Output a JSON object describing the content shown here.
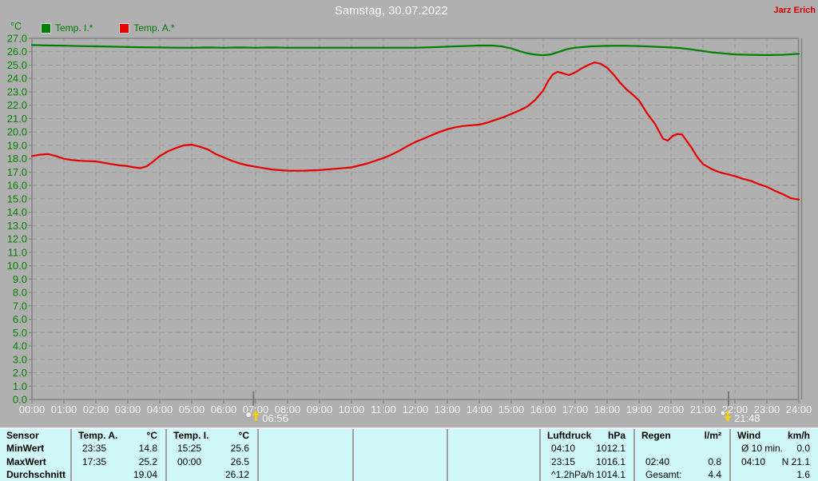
{
  "header": {
    "title": "Samstag, 30.07.2022",
    "owner": "Jarz Erich"
  },
  "colors": {
    "background": "#b0b0b0",
    "grid": "#9a9a9a",
    "axis": "#828282",
    "y_label_green": "#008000",
    "x_label_white": "#f8f8f8",
    "title_white": "#ffffff",
    "owner_red": "#d00000",
    "table_background": "#d0f8f8",
    "table_separator": "#a0a0a0",
    "marker_yellow": "#f0d400",
    "temp_inside_green": "#008000",
    "temp_outside_red": "#e60000"
  },
  "chart_data": {
    "type": "line",
    "title": "Samstag, 30.07.2022",
    "ylabel": "°C",
    "xlabel": "",
    "xlim": [
      0,
      24
    ],
    "ylim": [
      0,
      27
    ],
    "y_step": 1.0,
    "grid": true,
    "legend_position": "top-left",
    "x_tick_labels": [
      "00:00",
      "01:00",
      "02:00",
      "03:00",
      "04:00",
      "05:00",
      "06:00",
      "07:00",
      "08:00",
      "09:00",
      "10:00",
      "11:00",
      "12:00",
      "13:00",
      "14:00",
      "15:00",
      "16:00",
      "17:00",
      "18:00",
      "19:00",
      "20:00",
      "21:00",
      "22:00",
      "23:00",
      "24:00"
    ],
    "series": [
      {
        "name": "Temp. I.*",
        "color": "#008000",
        "points": [
          [
            0,
            26.5
          ],
          [
            0.5,
            26.47
          ],
          [
            1,
            26.45
          ],
          [
            1.5,
            26.42
          ],
          [
            2,
            26.4
          ],
          [
            2.5,
            26.38
          ],
          [
            3,
            26.35
          ],
          [
            3.5,
            26.33
          ],
          [
            4,
            26.32
          ],
          [
            4.5,
            26.3
          ],
          [
            5,
            26.3
          ],
          [
            5.5,
            26.32
          ],
          [
            6,
            26.3
          ],
          [
            6.5,
            26.32
          ],
          [
            7,
            26.3
          ],
          [
            7.5,
            26.32
          ],
          [
            8,
            26.3
          ],
          [
            8.5,
            26.3
          ],
          [
            9,
            26.3
          ],
          [
            9.5,
            26.3
          ],
          [
            10,
            26.3
          ],
          [
            10.5,
            26.3
          ],
          [
            11,
            26.3
          ],
          [
            11.5,
            26.3
          ],
          [
            12,
            26.3
          ],
          [
            12.5,
            26.33
          ],
          [
            13,
            26.38
          ],
          [
            13.5,
            26.42
          ],
          [
            14,
            26.46
          ],
          [
            14.4,
            26.46
          ],
          [
            14.7,
            26.4
          ],
          [
            15,
            26.25
          ],
          [
            15.25,
            26.05
          ],
          [
            15.5,
            25.88
          ],
          [
            15.75,
            25.78
          ],
          [
            16,
            25.74
          ],
          [
            16.25,
            25.8
          ],
          [
            16.5,
            26.0
          ],
          [
            16.75,
            26.2
          ],
          [
            17,
            26.3
          ],
          [
            17.5,
            26.4
          ],
          [
            18,
            26.44
          ],
          [
            18.5,
            26.45
          ],
          [
            19,
            26.42
          ],
          [
            19.5,
            26.37
          ],
          [
            20,
            26.32
          ],
          [
            20.3,
            26.27
          ],
          [
            20.6,
            26.18
          ],
          [
            21,
            26.05
          ],
          [
            21.3,
            25.95
          ],
          [
            21.6,
            25.88
          ],
          [
            22,
            25.8
          ],
          [
            22.5,
            25.77
          ],
          [
            23,
            25.75
          ],
          [
            23.5,
            25.77
          ],
          [
            24,
            25.85
          ]
        ]
      },
      {
        "name": "Temp. A.*",
        "color": "#e60000",
        "points": [
          [
            0,
            18.2
          ],
          [
            0.25,
            18.3
          ],
          [
            0.5,
            18.35
          ],
          [
            0.75,
            18.2
          ],
          [
            1,
            18.0
          ],
          [
            1.25,
            17.9
          ],
          [
            1.5,
            17.85
          ],
          [
            1.75,
            17.82
          ],
          [
            2,
            17.8
          ],
          [
            2.25,
            17.7
          ],
          [
            2.5,
            17.6
          ],
          [
            2.75,
            17.5
          ],
          [
            3,
            17.45
          ],
          [
            3.2,
            17.35
          ],
          [
            3.4,
            17.3
          ],
          [
            3.6,
            17.45
          ],
          [
            3.8,
            17.8
          ],
          [
            4,
            18.2
          ],
          [
            4.25,
            18.55
          ],
          [
            4.5,
            18.8
          ],
          [
            4.75,
            19.0
          ],
          [
            5,
            19.05
          ],
          [
            5.25,
            18.9
          ],
          [
            5.5,
            18.7
          ],
          [
            5.75,
            18.35
          ],
          [
            6,
            18.1
          ],
          [
            6.25,
            17.85
          ],
          [
            6.5,
            17.65
          ],
          [
            6.75,
            17.5
          ],
          [
            7,
            17.4
          ],
          [
            7.25,
            17.3
          ],
          [
            7.5,
            17.2
          ],
          [
            7.75,
            17.15
          ],
          [
            8,
            17.1
          ],
          [
            8.5,
            17.1
          ],
          [
            9,
            17.15
          ],
          [
            9.5,
            17.25
          ],
          [
            10,
            17.35
          ],
          [
            10.25,
            17.5
          ],
          [
            10.5,
            17.65
          ],
          [
            10.75,
            17.85
          ],
          [
            11,
            18.05
          ],
          [
            11.25,
            18.3
          ],
          [
            11.5,
            18.6
          ],
          [
            11.75,
            18.95
          ],
          [
            12,
            19.25
          ],
          [
            12.25,
            19.5
          ],
          [
            12.5,
            19.75
          ],
          [
            12.75,
            20.0
          ],
          [
            13,
            20.2
          ],
          [
            13.25,
            20.35
          ],
          [
            13.5,
            20.45
          ],
          [
            13.75,
            20.5
          ],
          [
            14,
            20.55
          ],
          [
            14.25,
            20.7
          ],
          [
            14.5,
            20.9
          ],
          [
            14.75,
            21.1
          ],
          [
            15,
            21.35
          ],
          [
            15.25,
            21.6
          ],
          [
            15.5,
            21.9
          ],
          [
            15.75,
            22.4
          ],
          [
            16,
            23.1
          ],
          [
            16.15,
            23.8
          ],
          [
            16.3,
            24.3
          ],
          [
            16.45,
            24.5
          ],
          [
            16.6,
            24.4
          ],
          [
            16.8,
            24.25
          ],
          [
            17,
            24.45
          ],
          [
            17.2,
            24.75
          ],
          [
            17.4,
            25.0
          ],
          [
            17.6,
            25.2
          ],
          [
            17.8,
            25.1
          ],
          [
            18,
            24.8
          ],
          [
            18.2,
            24.3
          ],
          [
            18.4,
            23.7
          ],
          [
            18.6,
            23.2
          ],
          [
            18.8,
            22.8
          ],
          [
            19,
            22.35
          ],
          [
            19.25,
            21.4
          ],
          [
            19.5,
            20.6
          ],
          [
            19.75,
            19.5
          ],
          [
            19.9,
            19.35
          ],
          [
            20.05,
            19.7
          ],
          [
            20.2,
            19.85
          ],
          [
            20.35,
            19.8
          ],
          [
            20.5,
            19.3
          ],
          [
            20.65,
            18.8
          ],
          [
            20.8,
            18.2
          ],
          [
            21,
            17.6
          ],
          [
            21.25,
            17.25
          ],
          [
            21.5,
            17.0
          ],
          [
            21.75,
            16.85
          ],
          [
            22,
            16.7
          ],
          [
            22.25,
            16.5
          ],
          [
            22.5,
            16.35
          ],
          [
            22.75,
            16.1
          ],
          [
            23,
            15.9
          ],
          [
            23.25,
            15.6
          ],
          [
            23.5,
            15.35
          ],
          [
            23.75,
            15.05
          ],
          [
            24,
            14.95
          ]
        ]
      }
    ],
    "markers": [
      {
        "type": "sunrise",
        "time": 6.933,
        "label": "06:56"
      },
      {
        "type": "sunset",
        "time": 21.8,
        "label": "21:48"
      }
    ]
  },
  "table": {
    "row_labels": [
      "Sensor",
      "MinWert",
      "MaxWert",
      "Durchschnitt"
    ],
    "groups": [
      {
        "name": "Temp. A.",
        "unit": "°C",
        "rows": [
          [
            "23:35",
            "14.8"
          ],
          [
            "17:35",
            "25.2"
          ],
          [
            "",
            "19.04"
          ]
        ]
      },
      {
        "name": "Temp. I.",
        "unit": "°C",
        "rows": [
          [
            "15:25",
            "25.6"
          ],
          [
            "00:00",
            "26.5"
          ],
          [
            "",
            "26.12"
          ]
        ]
      },
      {
        "name": "",
        "unit": "",
        "rows": [
          [
            "",
            ""
          ],
          [
            "",
            ""
          ],
          [
            "",
            ""
          ]
        ]
      },
      {
        "name": "",
        "unit": "",
        "rows": [
          [
            "",
            ""
          ],
          [
            "",
            ""
          ],
          [
            "",
            ""
          ]
        ]
      },
      {
        "name": "",
        "unit": "",
        "rows": [
          [
            "",
            ""
          ],
          [
            "",
            ""
          ],
          [
            "",
            ""
          ]
        ]
      },
      {
        "name": "Luftdruck",
        "unit": "hPa",
        "rows": [
          [
            "04:10",
            "1012.1"
          ],
          [
            "23:15",
            "1016.1"
          ],
          [
            "^1.2hPa/h",
            "1014.1"
          ]
        ]
      },
      {
        "name": "Regen",
        "unit": "l/m²",
        "rows": [
          [
            "",
            ""
          ],
          [
            "02:40",
            "0.8"
          ],
          [
            "Gesamt:",
            "4.4"
          ]
        ]
      },
      {
        "name": "Wind",
        "unit": "km/h",
        "rows": [
          [
            "Ø 10 min.",
            "0.0"
          ],
          [
            "04:10",
            "N 21.1"
          ],
          [
            "",
            "1.6"
          ]
        ]
      }
    ]
  }
}
